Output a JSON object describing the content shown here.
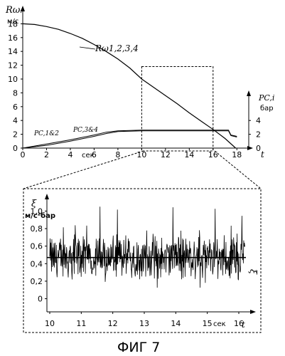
{
  "figure_caption": "ФИГ 7",
  "chart_data": [
    {
      "type": "line",
      "y_left_label": "Rωᵢ",
      "y_left_unit": "м/с",
      "y_right_label": "PC,i",
      "y_right_unit": "бар",
      "x_axis_label": "t",
      "x_unit_label": "сек",
      "x_ticks": [
        "0",
        "2",
        "4",
        "6",
        "8",
        "10",
        "12",
        "14",
        "16",
        "18"
      ],
      "y_left_ticks": [
        "0",
        "2",
        "4",
        "6",
        "8",
        "10",
        "12",
        "14",
        "16",
        "18"
      ],
      "y_right_ticks": [
        "0",
        "2",
        "4"
      ],
      "xlim": [
        0,
        19
      ],
      "ylim": [
        0,
        20
      ],
      "series": [
        {
          "name": "Rω1,2,3,4",
          "x": [
            0,
            1,
            2,
            3,
            4,
            5,
            6,
            7,
            8,
            9,
            10,
            11,
            12,
            13,
            14,
            15,
            16,
            17,
            17.9
          ],
          "y": [
            18,
            17.9,
            17.6,
            17.2,
            16.6,
            15.9,
            15,
            14,
            12.9,
            11.6,
            10,
            8.8,
            7.6,
            6.4,
            5.1,
            3.9,
            2.7,
            1.4,
            0
          ]
        },
        {
          "name": "PC,1&2",
          "x": [
            0,
            2,
            4,
            6,
            7,
            8,
            10,
            12,
            14,
            16,
            17.3,
            17.5,
            18
          ],
          "y": [
            0,
            0.6,
            1.2,
            1.9,
            2.3,
            2.5,
            2.6,
            2.6,
            2.6,
            2.6,
            2.6,
            1.9,
            1.7
          ]
        },
        {
          "name": "PC,3&4",
          "x": [
            0,
            2,
            4,
            6,
            7,
            8,
            10,
            12,
            14,
            16,
            17.3,
            17.5,
            18
          ],
          "y": [
            0,
            0.4,
            1.0,
            1.7,
            2.1,
            2.4,
            2.5,
            2.5,
            2.5,
            2.5,
            2.5,
            1.8,
            1.6
          ]
        }
      ],
      "highlight_box": {
        "x": [
          10,
          16
        ],
        "y": [
          0,
          11.8
        ]
      }
    },
    {
      "type": "line",
      "y_label": "ξ",
      "y_unit": "м/с²бар",
      "x_axis_label": "t",
      "x_unit_label": "сек",
      "x_ticks": [
        "10",
        "11",
        "12",
        "13",
        "14",
        "15",
        "16"
      ],
      "y_ticks": [
        "0",
        "0,2",
        "0,4",
        "0,6",
        "0,8",
        "1,0"
      ],
      "xlim": [
        10,
        16.2
      ],
      "ylim": [
        -0.15,
        1.15
      ],
      "mean_label": "ξ̄",
      "mean_value": 0.47,
      "signal_range": [
        0.0,
        1.05
      ]
    }
  ]
}
